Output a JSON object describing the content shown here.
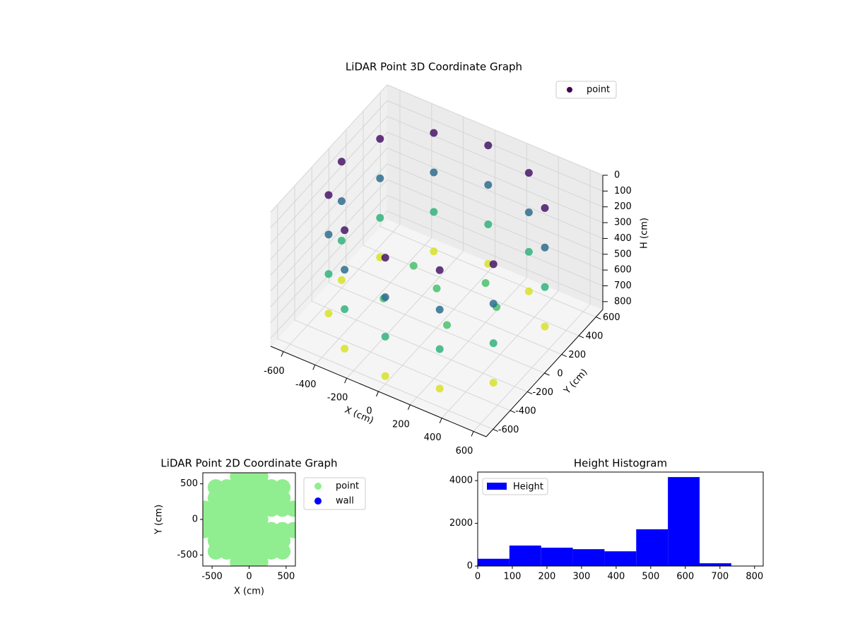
{
  "chart_data": [
    {
      "type": "scatter3d",
      "title": "LiDAR Point 3D Coordinate Graph",
      "xlabel": "X (cm)",
      "ylabel": "Y (cm)",
      "zlabel": "H (cm)",
      "xlim": [
        -680,
        680
      ],
      "ylim": [
        -680,
        680
      ],
      "zlim": [
        850,
        0
      ],
      "xticks": [
        -600,
        -400,
        -200,
        0,
        200,
        400,
        600
      ],
      "yticks": [
        -600,
        -400,
        -200,
        0,
        200,
        400,
        600
      ],
      "zticks": [
        0,
        100,
        200,
        300,
        400,
        500,
        600,
        700,
        800
      ],
      "grid": true,
      "cmap": "viridis",
      "legend": "upper right",
      "series": [
        {
          "name": "point",
          "color": "#440154",
          "x": [
            520,
            300,
            0,
            -300,
            -520,
            -600,
            -520,
            -300,
            0,
            300,
            520,
            520,
            300,
            0,
            -300,
            -520,
            -600,
            -520,
            -300,
            0,
            300,
            520,
            520,
            300,
            0,
            -300,
            -520,
            -600,
            -520,
            -300,
            0,
            300,
            520,
            520,
            300,
            0,
            -300,
            -520,
            -600,
            -520,
            -300,
            0,
            300,
            520,
            0,
            200,
            -200,
            -200,
            200,
            350
          ],
          "y": [
            300,
            520,
            600,
            520,
            300,
            0,
            -300,
            -520,
            -600,
            -520,
            -300,
            300,
            520,
            600,
            520,
            300,
            0,
            -300,
            -520,
            -600,
            -520,
            -300,
            300,
            520,
            600,
            520,
            300,
            0,
            -300,
            -520,
            -600,
            -520,
            -300,
            300,
            520,
            600,
            520,
            300,
            0,
            -300,
            -520,
            -600,
            -520,
            -300,
            0,
            200,
            100,
            -250,
            -250,
            50
          ],
          "h": [
            50,
            50,
            50,
            50,
            50,
            50,
            50,
            50,
            50,
            50,
            50,
            300,
            300,
            300,
            300,
            300,
            300,
            300,
            300,
            300,
            300,
            300,
            550,
            550,
            550,
            550,
            550,
            550,
            550,
            550,
            550,
            550,
            550,
            800,
            800,
            800,
            800,
            800,
            800,
            800,
            800,
            800,
            800,
            800,
            600,
            600,
            600,
            600,
            600,
            600
          ]
        }
      ]
    },
    {
      "type": "scatter",
      "title": "LiDAR Point 2D Coordinate Graph",
      "xlabel": "X (cm)",
      "ylabel": "Y (cm)",
      "xlim": [
        -625,
        625
      ],
      "ylim": [
        -655,
        655
      ],
      "xticks": [
        -500,
        0,
        500
      ],
      "yticks": [
        -500,
        0,
        500
      ],
      "legend": "outside right",
      "series": [
        {
          "name": "point",
          "color": "#90ee90",
          "x": [
            -150,
            0,
            150,
            -450,
            -300,
            -150,
            0,
            150,
            300,
            450,
            -450,
            -300,
            -150,
            0,
            150,
            300,
            450,
            -600,
            -450,
            -300,
            -150,
            0,
            150,
            300,
            450,
            600,
            -600,
            -450,
            -300,
            -150,
            0,
            150,
            -600,
            -450,
            -300,
            -150,
            0,
            150,
            300,
            450,
            600,
            -450,
            -300,
            -150,
            0,
            150,
            300,
            450,
            -450,
            -300,
            -150,
            0,
            150,
            300,
            450,
            -150,
            0,
            150
          ],
          "y": [
            600,
            600,
            600,
            450,
            450,
            450,
            450,
            450,
            450,
            450,
            300,
            300,
            300,
            300,
            300,
            300,
            300,
            150,
            150,
            150,
            150,
            150,
            150,
            150,
            150,
            150,
            0,
            0,
            0,
            0,
            0,
            0,
            -150,
            -150,
            -150,
            -150,
            -150,
            -150,
            -150,
            -150,
            -150,
            -300,
            -300,
            -300,
            -300,
            -300,
            -300,
            -300,
            -450,
            -450,
            -450,
            -450,
            -450,
            -450,
            -450,
            -600,
            -600,
            -600
          ]
        },
        {
          "name": "wall",
          "color": "#0000ff",
          "x": [],
          "y": []
        }
      ]
    },
    {
      "type": "histogram",
      "title": "Height Histogram",
      "name": "Height",
      "color": "#0000ff",
      "bins": [
        0,
        91.6,
        183.2,
        274.8,
        366.4,
        458,
        549.6,
        641.2,
        732.8
      ],
      "counts": [
        340,
        960,
        860,
        790,
        690,
        1720,
        4165,
        130
      ],
      "xlim": [
        0,
        825
      ],
      "ylim": [
        0,
        4400
      ],
      "xticks": [
        0,
        100,
        200,
        300,
        400,
        500,
        600,
        700,
        800
      ],
      "yticks": [
        0,
        2000,
        4000
      ],
      "legend": "upper left"
    }
  ]
}
